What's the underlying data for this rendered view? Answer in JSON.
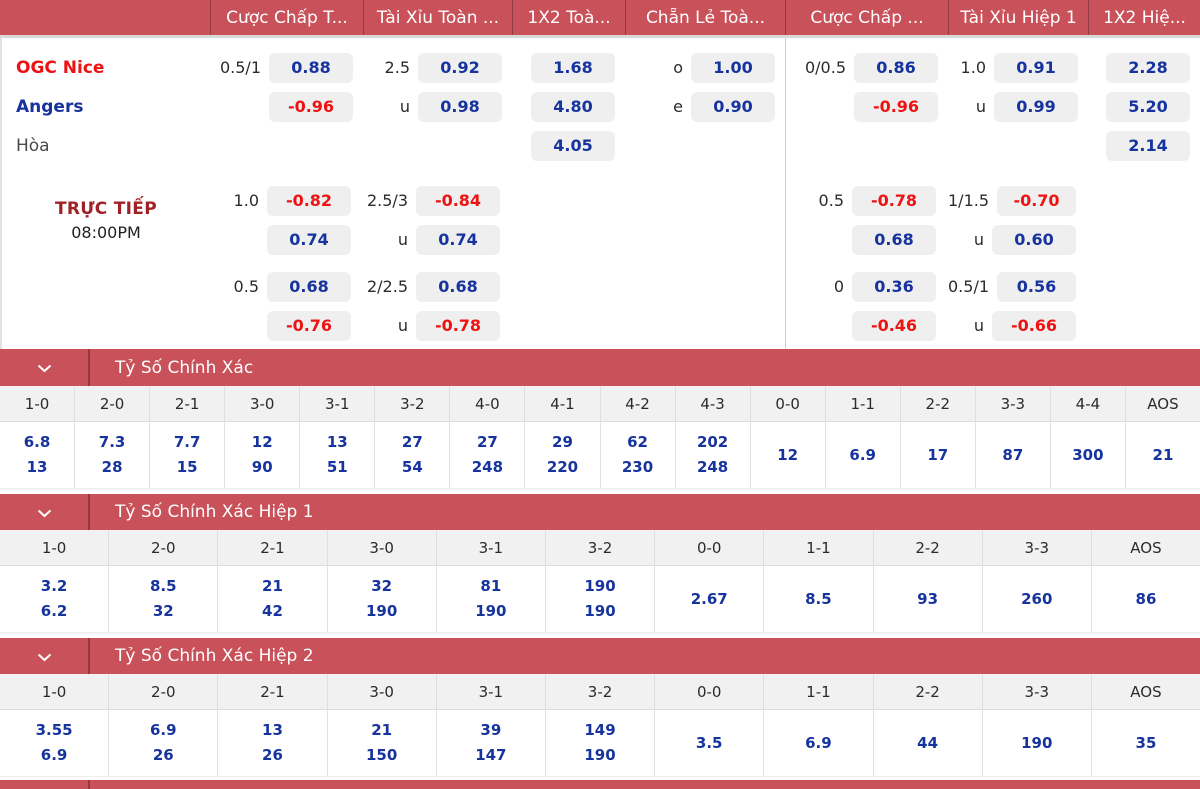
{
  "colors": {
    "bar_red": "#c9515a",
    "odds_blue": "#16339e",
    "odds_red": "#ee1313",
    "box_bg": "#efefef",
    "live_red": "#a02128"
  },
  "top_header": {
    "columns": [
      "",
      "Cược Chấp T...",
      "Tài Xỉu Toàn ...",
      "1X2 Toà...",
      "Chẵn Lẻ Toà...",
      "Cược Chấp ...",
      "Tài Xỉu Hiệp 1",
      "1X2 Hiệ..."
    ]
  },
  "match": {
    "home": "OGC Nice",
    "away": "Angers",
    "draw": "Hòa",
    "live": "TRỰC TIẾP",
    "time": "08:00PM"
  },
  "odds": {
    "group1": [
      {
        "label_key": "home",
        "label_class": "home",
        "cells": [
          {
            "line": "0.5/1",
            "val": "0.88"
          },
          {
            "line": "2.5",
            "val": "0.92"
          },
          {
            "val": "1.68"
          },
          {
            "line": "o",
            "val": "1.00"
          },
          {
            "line": "0/0.5",
            "val": "0.86"
          },
          {
            "line": "1.0",
            "val": "0.91"
          },
          {
            "val": "2.28"
          }
        ]
      },
      {
        "label_key": "away",
        "label_class": "away",
        "cells": [
          {
            "val": "-0.96"
          },
          {
            "line": "u",
            "val": "0.98"
          },
          {
            "val": "4.80"
          },
          {
            "line": "e",
            "val": "0.90"
          },
          {
            "val": "-0.96"
          },
          {
            "line": "u",
            "val": "0.99"
          },
          {
            "val": "5.20"
          }
        ]
      },
      {
        "label_key": "draw",
        "label_class": "draw",
        "cells": [
          null,
          null,
          {
            "val": "4.05"
          },
          null,
          null,
          null,
          {
            "val": "2.14"
          }
        ]
      }
    ],
    "group2": [
      {
        "cells": [
          {
            "line": "1.0",
            "val": "-0.82"
          },
          {
            "line": "2.5/3",
            "val": "-0.84"
          },
          null,
          null,
          {
            "line": "0.5",
            "val": "-0.78"
          },
          {
            "line": "1/1.5",
            "val": "-0.70"
          },
          null
        ]
      },
      {
        "cells": [
          {
            "val": "0.74"
          },
          {
            "line": "u",
            "val": "0.74"
          },
          null,
          null,
          {
            "val": "0.68"
          },
          {
            "line": "u",
            "val": "0.60"
          },
          null
        ]
      }
    ],
    "group3": [
      {
        "cells": [
          {
            "line": "0.5",
            "val": "0.68"
          },
          {
            "line": "2/2.5",
            "val": "0.68"
          },
          null,
          null,
          {
            "line": "0",
            "val": "0.36"
          },
          {
            "line": "0.5/1",
            "val": "0.56"
          },
          null
        ]
      },
      {
        "cells": [
          {
            "val": "-0.76"
          },
          {
            "line": "u",
            "val": "-0.78"
          },
          null,
          null,
          {
            "val": "-0.46"
          },
          {
            "line": "u",
            "val": "-0.66"
          },
          null
        ]
      }
    ]
  },
  "sections": [
    {
      "title": "Tỷ Số Chính Xác",
      "columns": [
        "1-0",
        "2-0",
        "2-1",
        "3-0",
        "3-1",
        "3-2",
        "4-0",
        "4-1",
        "4-2",
        "4-3",
        "0-0",
        "1-1",
        "2-2",
        "3-3",
        "4-4",
        "AOS"
      ],
      "values": [
        [
          "6.8",
          "13"
        ],
        [
          "7.3",
          "28"
        ],
        [
          "7.7",
          "15"
        ],
        [
          "12",
          "90"
        ],
        [
          "13",
          "51"
        ],
        [
          "27",
          "54"
        ],
        [
          "27",
          "248"
        ],
        [
          "29",
          "220"
        ],
        [
          "62",
          "230"
        ],
        [
          "202",
          "248"
        ],
        [
          "12"
        ],
        [
          "6.9"
        ],
        [
          "17"
        ],
        [
          "87"
        ],
        [
          "300"
        ],
        [
          "21"
        ]
      ]
    },
    {
      "title": "Tỷ Số Chính Xác Hiệp 1",
      "columns": [
        "1-0",
        "2-0",
        "2-1",
        "3-0",
        "3-1",
        "3-2",
        "0-0",
        "1-1",
        "2-2",
        "3-3",
        "AOS"
      ],
      "values": [
        [
          "3.2",
          "6.2"
        ],
        [
          "8.5",
          "32"
        ],
        [
          "21",
          "42"
        ],
        [
          "32",
          "190"
        ],
        [
          "81",
          "190"
        ],
        [
          "190",
          "190"
        ],
        [
          "2.67"
        ],
        [
          "8.5"
        ],
        [
          "93"
        ],
        [
          "260"
        ],
        [
          "86"
        ]
      ]
    },
    {
      "title": "Tỷ Số Chính Xác Hiệp 2",
      "columns": [
        "1-0",
        "2-0",
        "2-1",
        "3-0",
        "3-1",
        "3-2",
        "0-0",
        "1-1",
        "2-2",
        "3-3",
        "AOS"
      ],
      "values": [
        [
          "3.55",
          "6.9"
        ],
        [
          "6.9",
          "26"
        ],
        [
          "13",
          "26"
        ],
        [
          "21",
          "150"
        ],
        [
          "39",
          "147"
        ],
        [
          "149",
          "190"
        ],
        [
          "3.5"
        ],
        [
          "6.9"
        ],
        [
          "44"
        ],
        [
          "190"
        ],
        [
          "35"
        ]
      ]
    }
  ]
}
